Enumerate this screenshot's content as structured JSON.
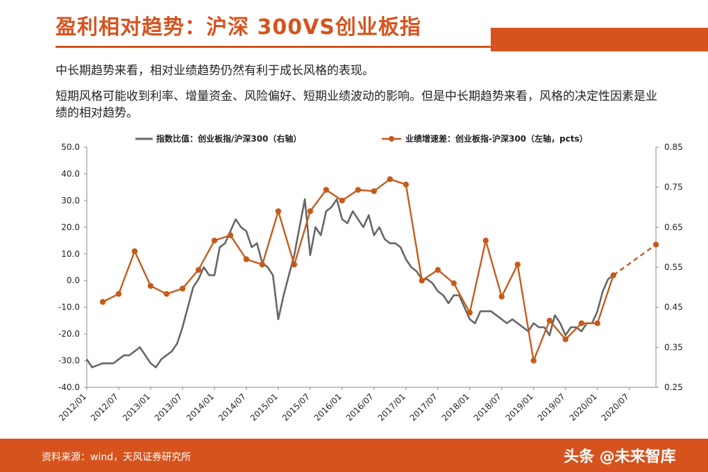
{
  "header": {
    "title": "盈利相对趋势：沪深 300VS创业板指",
    "para1": "中长期趋势来看，相对业绩趋势仍然有利于成长风格的表现。",
    "para2": "短期风格可能收到利率、增量资金、风险偏好、短期业绩波动的影响。但是中长期趋势来看，风格的决定性因素是业绩的相对趋势。"
  },
  "footer": {
    "source": "资料来源：wind，天风证券研究所",
    "watermark": "头条 @未来智库"
  },
  "colors": {
    "accent": "#d7531e",
    "gray_series": "#666666",
    "orange_series": "#c65a1b"
  },
  "chart_data": {
    "type": "line",
    "x_tick_labels": [
      "2012/01",
      "2012/07",
      "2013/01",
      "2013/07",
      "2014/01",
      "2014/07",
      "2015/01",
      "2015/07",
      "2016/01",
      "2016/07",
      "2017/01",
      "2017/07",
      "2018/01",
      "2018/07",
      "2019/01",
      "2019/07",
      "2020/01",
      "2020/07"
    ],
    "yleft_lim": [
      -40,
      50
    ],
    "yleft_ticks": [
      "-40.0",
      "-30.0",
      "-20.0",
      "-10.0",
      "0.0",
      "10.0",
      "20.0",
      "30.0",
      "40.0",
      "50.0"
    ],
    "yright_lim": [
      0.25,
      0.85
    ],
    "yright_ticks": [
      "0.25",
      "0.35",
      "0.45",
      "0.55",
      "0.65",
      "0.75",
      "0.85"
    ],
    "legend_position": "top",
    "series": [
      {
        "name": "指数比值：创业板指/沪深300（右轴）",
        "axis": "right",
        "style": "line",
        "x": [
          "2012/01",
          "2012/02",
          "2012/04",
          "2012/06",
          "2012/08",
          "2012/09",
          "2012/11",
          "2013/01",
          "2013/02",
          "2013/03",
          "2013/05",
          "2013/06",
          "2013/07",
          "2013/08",
          "2013/09",
          "2013/10",
          "2013/11",
          "2013/12",
          "2014/01",
          "2014/02",
          "2014/03",
          "2014/04",
          "2014/05",
          "2014/06",
          "2014/07",
          "2014/08",
          "2014/09",
          "2014/10",
          "2014/11",
          "2014/12",
          "2015/01",
          "2015/02",
          "2015/03",
          "2015/04",
          "2015/05",
          "2015/06",
          "2015/07",
          "2015/08",
          "2015/09",
          "2015/10",
          "2015/11",
          "2015/12",
          "2016/01",
          "2016/02",
          "2016/03",
          "2016/04",
          "2016/05",
          "2016/06",
          "2016/07",
          "2016/08",
          "2016/09",
          "2016/10",
          "2016/11",
          "2016/12",
          "2017/01",
          "2017/02",
          "2017/03",
          "2017/04",
          "2017/05",
          "2017/06",
          "2017/07",
          "2017/08",
          "2017/09",
          "2017/10",
          "2017/11",
          "2017/12",
          "2018/01",
          "2018/02",
          "2018/03",
          "2018/04",
          "2018/05",
          "2018/06",
          "2018/07",
          "2018/08",
          "2018/09",
          "2018/10",
          "2018/11",
          "2018/12",
          "2019/01",
          "2019/02",
          "2019/03",
          "2019/04",
          "2019/05",
          "2019/06",
          "2019/07",
          "2019/08",
          "2019/09",
          "2019/10",
          "2019/11",
          "2019/12",
          "2020/01",
          "2020/02",
          "2020/03",
          "2020/04"
        ],
        "values": [
          0.32,
          0.3,
          0.31,
          0.31,
          0.33,
          0.33,
          0.35,
          0.31,
          0.3,
          0.32,
          0.34,
          0.36,
          0.4,
          0.45,
          0.5,
          0.52,
          0.55,
          0.53,
          0.53,
          0.6,
          0.61,
          0.64,
          0.67,
          0.65,
          0.64,
          0.6,
          0.61,
          0.56,
          0.55,
          0.53,
          0.42,
          0.48,
          0.53,
          0.58,
          0.65,
          0.72,
          0.58,
          0.65,
          0.63,
          0.69,
          0.7,
          0.72,
          0.67,
          0.66,
          0.69,
          0.67,
          0.65,
          0.68,
          0.63,
          0.65,
          0.62,
          0.61,
          0.61,
          0.6,
          0.57,
          0.55,
          0.54,
          0.52,
          0.52,
          0.51,
          0.49,
          0.48,
          0.46,
          0.48,
          0.48,
          0.45,
          0.42,
          0.41,
          0.44,
          0.44,
          0.44,
          0.43,
          0.42,
          0.41,
          0.42,
          0.41,
          0.4,
          0.39,
          0.41,
          0.4,
          0.4,
          0.38,
          0.43,
          0.41,
          0.38,
          0.4,
          0.4,
          0.39,
          0.41,
          0.41,
          0.44,
          0.49,
          0.52,
          0.53
        ]
      },
      {
        "name": "业绩增速差：创业板指-沪深300（左轴，pcts）",
        "axis": "left",
        "style": "line-marker",
        "x": [
          "2012/04",
          "2012/07",
          "2012/10",
          "2013/01",
          "2013/04",
          "2013/07",
          "2013/10",
          "2014/01",
          "2014/04",
          "2014/07",
          "2014/10",
          "2015/01",
          "2015/04",
          "2015/07",
          "2015/10",
          "2016/01",
          "2016/04",
          "2016/07",
          "2016/10",
          "2017/01",
          "2017/04",
          "2017/07",
          "2017/10",
          "2018/01",
          "2018/04",
          "2018/07",
          "2018/10",
          "2019/01",
          "2019/04",
          "2019/07",
          "2019/10",
          "2020/01",
          "2020/04"
        ],
        "values": [
          -8.0,
          -5.0,
          11.0,
          -2.0,
          -5.0,
          -3.0,
          4.0,
          15.0,
          17.0,
          8.0,
          6.0,
          26.0,
          6.0,
          26.0,
          34.0,
          30.0,
          34.0,
          33.5,
          38.0,
          36.0,
          0.0,
          4.0,
          -1.0,
          -12.0,
          15.0,
          -6.0,
          6.0,
          -30.0,
          -15.0,
          -22.0,
          -16.0,
          -16.0,
          2.0
        ]
      },
      {
        "name": "",
        "axis": "left",
        "style": "dashed-marker",
        "x": [
          "2020/04",
          "2020/12"
        ],
        "values": [
          2.0,
          13.5
        ]
      }
    ]
  }
}
